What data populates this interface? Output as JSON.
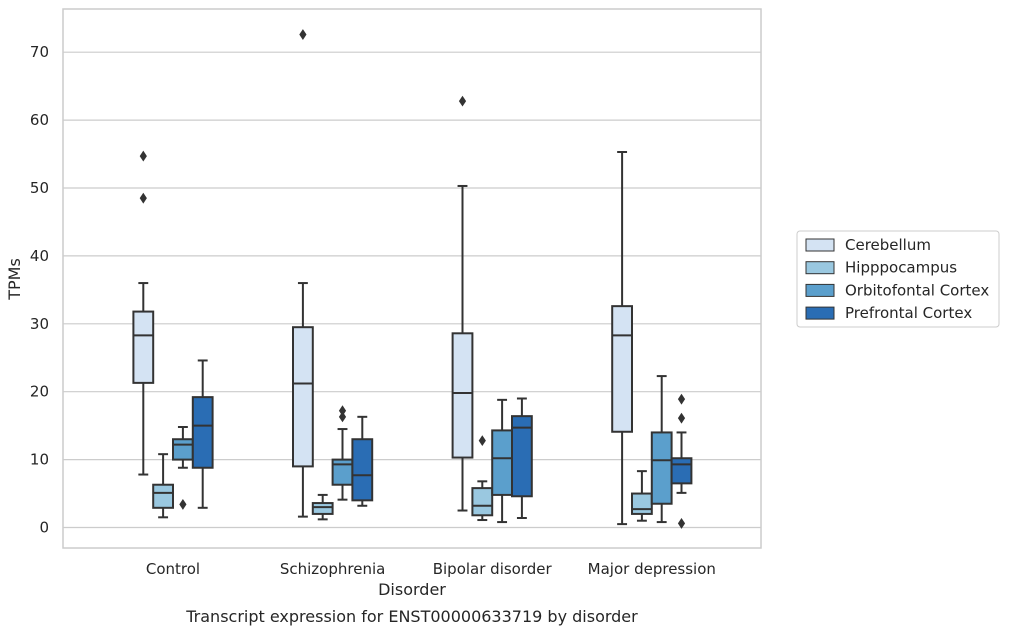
{
  "caption": "Transcript expression for ENST00000633719 by disorder",
  "chart_data": {
    "type": "box",
    "xlabel": "Disorder",
    "ylabel": "TPMs",
    "ylim": [
      -3,
      76
    ],
    "yticks": [
      0,
      10,
      20,
      30,
      40,
      50,
      60,
      70
    ],
    "grid": "horizontal",
    "legend_placement": "right",
    "categories": [
      "Control",
      "Schizophrenia",
      "Bipolar disorder",
      "Major depression"
    ],
    "series": [
      {
        "name": "Cerebellum",
        "color": "#d4e3f3",
        "boxes": [
          {
            "whislo": 7.8,
            "q1": 21.3,
            "med": 28.3,
            "q3": 31.8,
            "whishi": 36,
            "fliers": [
              48.5,
              54.7
            ]
          },
          {
            "whislo": 1.6,
            "q1": 9,
            "med": 21.2,
            "q3": 29.5,
            "whishi": 36,
            "fliers": [
              72.6
            ]
          },
          {
            "whislo": 2.5,
            "q1": 10.3,
            "med": 19.8,
            "q3": 28.6,
            "whishi": 50.3,
            "fliers": [
              62.8
            ]
          },
          {
            "whislo": 0.5,
            "q1": 14.1,
            "med": 28.3,
            "q3": 32.6,
            "whishi": 55.3,
            "fliers": []
          }
        ]
      },
      {
        "name": "Hipppocampus",
        "color": "#9ac8e0",
        "boxes": [
          {
            "whislo": 1.5,
            "q1": 2.9,
            "med": 5.1,
            "q3": 6.3,
            "whishi": 10.8,
            "fliers": []
          },
          {
            "whislo": 1.2,
            "q1": 2,
            "med": 3,
            "q3": 3.6,
            "whishi": 4.8,
            "fliers": []
          },
          {
            "whislo": 1.1,
            "q1": 1.8,
            "med": 3.2,
            "q3": 5.8,
            "whishi": 6.8,
            "fliers": [
              12.8
            ]
          },
          {
            "whislo": 1,
            "q1": 2,
            "med": 2.7,
            "q3": 5,
            "whishi": 8.3,
            "fliers": []
          }
        ]
      },
      {
        "name": "Orbitofontal Cortex",
        "color": "#5b9fcc",
        "boxes": [
          {
            "whislo": 8.8,
            "q1": 10,
            "med": 12.2,
            "q3": 13,
            "whishi": 14.8,
            "fliers": [
              3.4
            ]
          },
          {
            "whislo": 4.1,
            "q1": 6.3,
            "med": 9.3,
            "q3": 10,
            "whishi": 14.5,
            "fliers": [
              16.3,
              17.2
            ]
          },
          {
            "whislo": 0.8,
            "q1": 4.8,
            "med": 10.2,
            "q3": 14.3,
            "whishi": 18.8,
            "fliers": []
          },
          {
            "whislo": 0.8,
            "q1": 3.5,
            "med": 9.9,
            "q3": 14,
            "whishi": 22.3,
            "fliers": []
          }
        ]
      },
      {
        "name": "Prefrontal Cortex",
        "color": "#2a6db4",
        "boxes": [
          {
            "whislo": 2.9,
            "q1": 8.8,
            "med": 15,
            "q3": 19.2,
            "whishi": 24.6,
            "fliers": []
          },
          {
            "whislo": 3.2,
            "q1": 4,
            "med": 7.7,
            "q3": 13,
            "whishi": 16.3,
            "fliers": []
          },
          {
            "whislo": 1.4,
            "q1": 4.6,
            "med": 14.7,
            "q3": 16.4,
            "whishi": 19,
            "fliers": []
          },
          {
            "whislo": 5.1,
            "q1": 6.5,
            "med": 9.3,
            "q3": 10.2,
            "whishi": 14,
            "fliers": [
              0.6,
              16.1,
              18.9
            ]
          }
        ]
      }
    ]
  }
}
